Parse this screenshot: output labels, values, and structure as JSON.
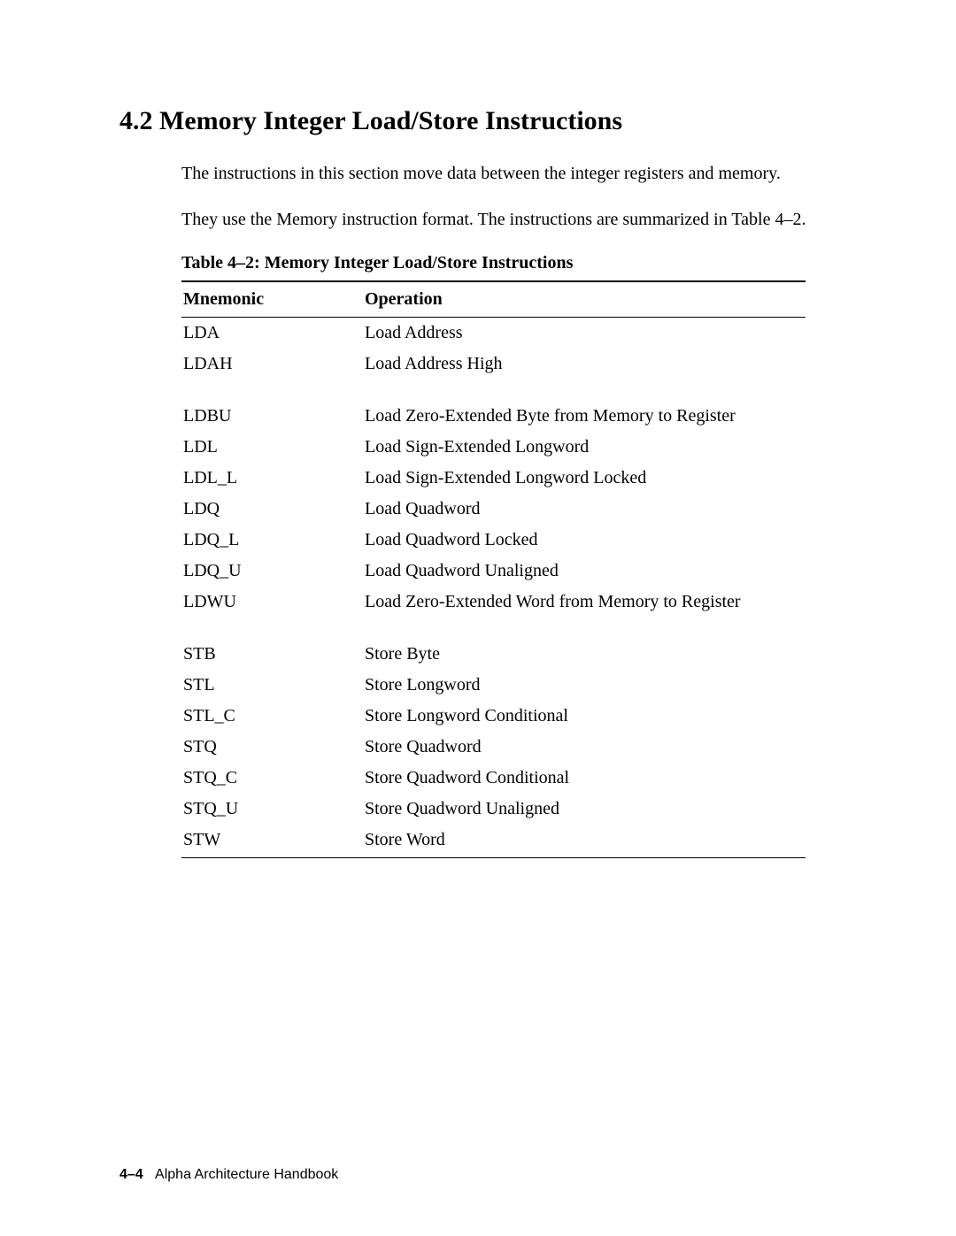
{
  "heading": "4.2  Memory Integer Load/Store Instructions",
  "paragraphs": [
    "The instructions in this section move data between the integer registers and memory.",
    "They use the Memory instruction format. The instructions are summarized in Table 4–2."
  ],
  "table": {
    "caption": "Table 4–2:  Memory Integer Load/Store Instructions",
    "columns": [
      "Mnemonic",
      "Operation"
    ],
    "groups": [
      [
        {
          "mnemonic": "LDA",
          "operation": "Load Address"
        },
        {
          "mnemonic": "LDAH",
          "operation": "Load Address High"
        }
      ],
      [
        {
          "mnemonic": "LDBU",
          "operation": "Load Zero-Extended Byte from Memory to Register"
        },
        {
          "mnemonic": "LDL",
          "operation": "Load Sign-Extended Longword"
        },
        {
          "mnemonic": "LDL_L",
          "operation": "Load Sign-Extended Longword Locked"
        },
        {
          "mnemonic": "LDQ",
          "operation": "Load Quadword"
        },
        {
          "mnemonic": "LDQ_L",
          "operation": "Load Quadword Locked"
        },
        {
          "mnemonic": "LDQ_U",
          "operation": "Load Quadword Unaligned"
        },
        {
          "mnemonic": "LDWU",
          "operation": "Load Zero-Extended Word from Memory to Register"
        }
      ],
      [
        {
          "mnemonic": "STB",
          "operation": "Store Byte"
        },
        {
          "mnemonic": "STL",
          "operation": "Store Longword"
        },
        {
          "mnemonic": "STL_C",
          "operation": "Store Longword Conditional"
        },
        {
          "mnemonic": "STQ",
          "operation": "Store Quadword"
        },
        {
          "mnemonic": "STQ_C",
          "operation": "Store Quadword Conditional"
        },
        {
          "mnemonic": "STQ_U",
          "operation": "Store Quadword Unaligned"
        },
        {
          "mnemonic": "STW",
          "operation": "Store Word"
        }
      ]
    ]
  },
  "footer": {
    "page": "4–4",
    "title": "Alpha Architecture Handbook"
  }
}
